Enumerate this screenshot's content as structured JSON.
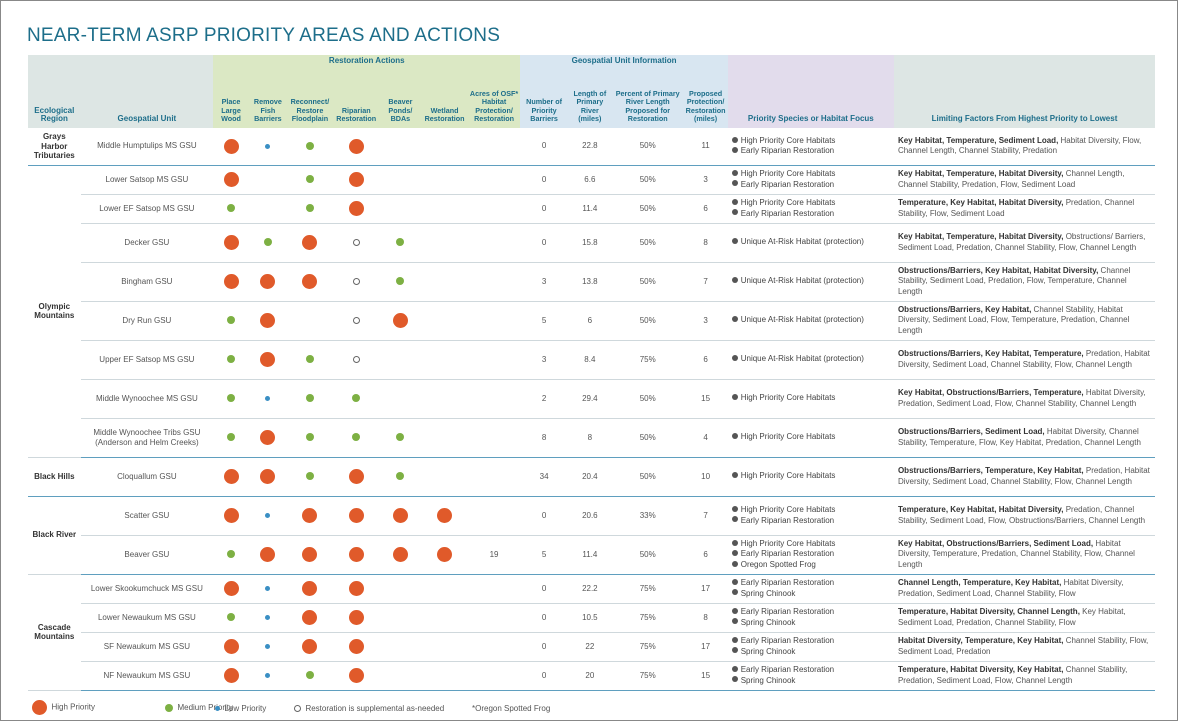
{
  "title": "NEAR-TERM ASRP PRIORITY AREAS AND ACTIONS",
  "group_headers": {
    "restoration_actions": "Restoration Actions",
    "geospatial_unit_information": "Geospatial Unit Information"
  },
  "columns": {
    "ecological_region": "Ecological Region",
    "geospatial_unit": "Geospatial Unit",
    "place_large_wood": "Place Large Wood",
    "remove_fish_barriers": "Remove Fish Barriers",
    "reconnect_floodplain": "Reconnect/ Restore Floodplain",
    "riparian_restoration": "Riparian Restoration",
    "beaver_ponds": "Beaver Ponds/ BDAs",
    "wetland_restoration": "Wetland Restoration",
    "acres_osf": "Acres of OSF* Habitat Protection/ Restoration",
    "num_barriers": "Number of Priority Barriers",
    "length_river": "Length of Primary River (miles)",
    "percent_length": "Percent of Primary River Length Proposed for Restoration",
    "proposed_miles": "Proposed Protection/ Restoration (miles)",
    "priority_species": "Priority Species or Habitat Focus",
    "limiting_factors": "Limiting Factors From Highest Priority to Lowest"
  },
  "regions": [
    {
      "name": "Grays Harbor Tributaries",
      "rows": [
        0
      ]
    },
    {
      "name": "Olympic Mountains",
      "rows": [
        1,
        2,
        3,
        4,
        5,
        6,
        7,
        8
      ]
    },
    {
      "name": "Black Hills",
      "rows": [
        9
      ]
    },
    {
      "name": "Black River",
      "rows": [
        10,
        11
      ]
    },
    {
      "name": "Cascade Mountains",
      "rows": [
        12,
        13,
        14,
        15
      ]
    }
  ],
  "rows": [
    {
      "gsu": "Middle Humptulips MS GSU",
      "actions": [
        "high",
        "low",
        "med",
        "high",
        "",
        ""
      ],
      "acres": "",
      "barriers": "0",
      "length": "22.8",
      "percent": "50%",
      "miles": "11",
      "species": [
        "High Priority Core Habitats",
        "Early Riparian Restoration"
      ],
      "lim_bold": "Key Habitat, Temperature, Sediment Load,",
      "lim_rest": " Habitat Diversity, Flow, Channel Length, Channel Stability, Predation"
    },
    {
      "gsu": "Lower Satsop MS GSU",
      "actions": [
        "high",
        "",
        "med",
        "high",
        "",
        ""
      ],
      "acres": "",
      "barriers": "0",
      "length": "6.6",
      "percent": "50%",
      "miles": "3",
      "species": [
        "High Priority Core Habitats",
        "Early Riparian Restoration"
      ],
      "lim_bold": "Key Habitat, Temperature, Habitat Diversity,",
      "lim_rest": " Channel Length, Channel Stability, Predation, Flow, Sediment Load"
    },
    {
      "gsu": "Lower EF Satsop MS GSU",
      "actions": [
        "med",
        "",
        "med",
        "high",
        "",
        ""
      ],
      "acres": "",
      "barriers": "0",
      "length": "11.4",
      "percent": "50%",
      "miles": "6",
      "species": [
        "High Priority Core Habitats",
        "Early Riparian Restoration"
      ],
      "lim_bold": "Temperature, Key Habitat, Habitat Diversity,",
      "lim_rest": " Predation, Channel Stability, Flow, Sediment Load"
    },
    {
      "gsu": "Decker GSU",
      "actions": [
        "high",
        "med",
        "high",
        "supp",
        "med",
        ""
      ],
      "acres": "",
      "barriers": "0",
      "length": "15.8",
      "percent": "50%",
      "miles": "8",
      "species": [
        "Unique At-Risk Habitat (protection)"
      ],
      "lim_bold": "Key Habitat, Temperature, Habitat Diversity,",
      "lim_rest": " Obstructions/ Barriers, Sediment Load, Predation, Channel Stability, Flow, Channel Length"
    },
    {
      "gsu": "Bingham GSU",
      "actions": [
        "high",
        "high",
        "high",
        "supp",
        "med",
        ""
      ],
      "acres": "",
      "barriers": "3",
      "length": "13.8",
      "percent": "50%",
      "miles": "7",
      "species": [
        "Unique At-Risk Habitat (protection)"
      ],
      "lim_bold": "Obstructions/Barriers, Key Habitat, Habitat Diversity,",
      "lim_rest": " Channel Stability, Sediment Load, Predation, Flow, Temperature, Channel Length"
    },
    {
      "gsu": "Dry Run GSU",
      "actions": [
        "med",
        "high",
        "",
        "supp",
        "high",
        ""
      ],
      "acres": "",
      "barriers": "5",
      "length": "6",
      "percent": "50%",
      "miles": "3",
      "species": [
        "Unique At-Risk Habitat (protection)"
      ],
      "lim_bold": "Obstructions/Barriers, Key Habitat,",
      "lim_rest": " Channel Stability, Habitat Diversity, Sediment Load, Flow, Temperature, Predation, Channel Length"
    },
    {
      "gsu": "Upper EF Satsop MS GSU",
      "actions": [
        "med",
        "high",
        "med",
        "supp",
        "",
        ""
      ],
      "acres": "",
      "barriers": "3",
      "length": "8.4",
      "percent": "75%",
      "miles": "6",
      "species": [
        "Unique At-Risk Habitat (protection)"
      ],
      "lim_bold": "Obstructions/Barriers, Key Habitat, Temperature,",
      "lim_rest": " Predation, Habitat Diversity, Sediment Load, Channel Stability, Flow, Channel Length"
    },
    {
      "gsu": "Middle Wynoochee MS GSU",
      "actions": [
        "med",
        "low",
        "med",
        "med",
        "",
        ""
      ],
      "acres": "",
      "barriers": "2",
      "length": "29.4",
      "percent": "50%",
      "miles": "15",
      "species": [
        "High Priority Core Habitats"
      ],
      "lim_bold": "Key Habitat, Obstructions/Barriers, Temperature,",
      "lim_rest": " Habitat Diversity, Predation, Sediment Load, Flow, Channel Stability, Channel Length"
    },
    {
      "gsu": "Middle Wynoochee Tribs GSU (Anderson and Helm Creeks)",
      "actions": [
        "med",
        "high",
        "med",
        "med",
        "med",
        ""
      ],
      "acres": "",
      "barriers": "8",
      "length": "8",
      "percent": "50%",
      "miles": "4",
      "species": [
        "High Priority Core Habitats"
      ],
      "lim_bold": "Obstructions/Barriers, Sediment Load,",
      "lim_rest": " Habitat Diversity, Channel Stability, Temperature, Flow, Key Habitat, Predation, Channel Length"
    },
    {
      "gsu": "Cloquallum GSU",
      "actions": [
        "high",
        "high",
        "med",
        "high",
        "med",
        ""
      ],
      "acres": "",
      "barriers": "34",
      "length": "20.4",
      "percent": "50%",
      "miles": "10",
      "species": [
        "High Priority Core Habitats"
      ],
      "lim_bold": "Obstructions/Barriers, Temperature, Key Habitat,",
      "lim_rest": " Predation, Habitat Diversity, Sediment Load, Channel Stability, Flow, Channel Length"
    },
    {
      "gsu": "Scatter GSU",
      "actions": [
        "high",
        "low",
        "high",
        "high",
        "high",
        "high"
      ],
      "acres": "",
      "barriers": "0",
      "length": "20.6",
      "percent": "33%",
      "miles": "7",
      "species": [
        "High Priority Core Habitats",
        "Early Riparian Restoration"
      ],
      "lim_bold": "Temperature, Key Habitat, Habitat Diversity,",
      "lim_rest": " Predation, Channel Stability, Sediment Load, Flow, Obstructions/Barriers, Channel Length"
    },
    {
      "gsu": "Beaver GSU",
      "actions": [
        "med",
        "high",
        "high",
        "high",
        "high",
        "high"
      ],
      "acres": "19",
      "barriers": "5",
      "length": "11.4",
      "percent": "50%",
      "miles": "6",
      "species": [
        "High Priority Core Habitats",
        "Early Riparian Restoration",
        "Oregon Spotted Frog"
      ],
      "lim_bold": "Key Habitat, Obstructions/Barriers, Sediment Load,",
      "lim_rest": " Habitat Diversity, Temperature, Predation, Channel Stability, Flow, Channel Length"
    },
    {
      "gsu": "Lower Skookumchuck MS GSU",
      "actions": [
        "high",
        "low",
        "high",
        "high",
        "",
        ""
      ],
      "acres": "",
      "barriers": "0",
      "length": "22.2",
      "percent": "75%",
      "miles": "17",
      "species": [
        "Early Riparian Restoration",
        "Spring Chinook"
      ],
      "lim_bold": "Channel Length, Temperature, Key Habitat,",
      "lim_rest": " Habitat Diversity, Predation, Sediment Load, Channel Stability, Flow"
    },
    {
      "gsu": "Lower Newaukum MS GSU",
      "actions": [
        "med",
        "low",
        "high",
        "high",
        "",
        ""
      ],
      "acres": "",
      "barriers": "0",
      "length": "10.5",
      "percent": "75%",
      "miles": "8",
      "species": [
        "Early Riparian Restoration",
        "Spring Chinook"
      ],
      "lim_bold": "Temperature, Habitat Diversity, Channel Length,",
      "lim_rest": " Key Habitat, Sediment Load, Predation, Channel Stability, Flow"
    },
    {
      "gsu": "SF Newaukum MS GSU",
      "actions": [
        "high",
        "low",
        "high",
        "high",
        "",
        ""
      ],
      "acres": "",
      "barriers": "0",
      "length": "22",
      "percent": "75%",
      "miles": "17",
      "species": [
        "Early Riparian Restoration",
        "Spring Chinook"
      ],
      "lim_bold": "Habitat Diversity, Temperature, Key Habitat,",
      "lim_rest": " Channel Stability, Flow, Sediment Load, Predation"
    },
    {
      "gsu": "NF Newaukum MS GSU",
      "actions": [
        "high",
        "low",
        "med",
        "high",
        "",
        ""
      ],
      "acres": "",
      "barriers": "0",
      "length": "20",
      "percent": "75%",
      "miles": "15",
      "species": [
        "Early Riparian Restoration",
        "Spring Chinook"
      ],
      "lim_bold": "Temperature, Habitat Diversity, Key Habitat,",
      "lim_rest": " Channel Stability, Predation, Sediment Load, Flow, Channel Length"
    }
  ],
  "legend": {
    "high": "High Priority",
    "medium": "Medium Priority",
    "low": "Low Priority",
    "supp": "Restoration is supplemental as-needed",
    "osf": "*Oregon Spotted Frog"
  }
}
